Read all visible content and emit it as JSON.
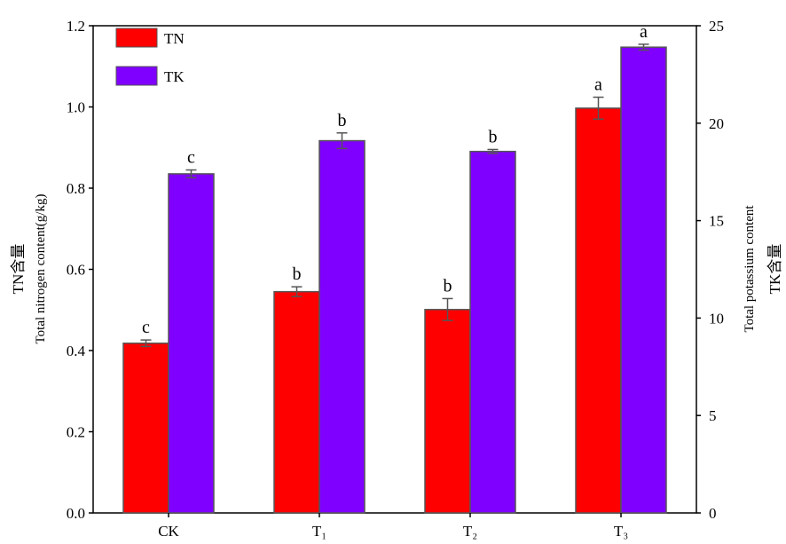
{
  "chart_data": {
    "type": "bar",
    "categories": [
      "CK",
      "T₁",
      "T₂",
      "T₃"
    ],
    "series": [
      {
        "name": "TN",
        "axis": "left",
        "color": "#ff0000",
        "values": [
          0.418,
          0.545,
          0.501,
          0.997
        ],
        "errors": [
          0.008,
          0.012,
          0.027,
          0.027
        ],
        "letters": [
          "c",
          "b",
          "b",
          "a"
        ]
      },
      {
        "name": "TK",
        "axis": "right",
        "color": "#8000ff",
        "values": [
          17.4,
          19.1,
          18.55,
          23.9
        ],
        "errors": [
          0.2,
          0.4,
          0.1,
          0.15
        ],
        "letters": [
          "c",
          "b",
          "b",
          "a"
        ]
      }
    ],
    "y_left": {
      "label_cn": "TN含量",
      "label_en": "Total nitrogen content(g/kg)",
      "ylim": [
        0,
        1.2
      ],
      "ticks": [
        "0.0",
        "0.2",
        "0.4",
        "0.6",
        "0.8",
        "1.0",
        "1.2"
      ]
    },
    "y_right": {
      "label_cn": "TK含量",
      "label_en": "Total potassium content",
      "ylim": [
        0,
        25
      ],
      "ticks": [
        "0",
        "5",
        "10",
        "15",
        "20",
        "25"
      ]
    },
    "legend": {
      "placement": "top-left",
      "entries": [
        "TN",
        "TK"
      ]
    },
    "grid": false
  }
}
